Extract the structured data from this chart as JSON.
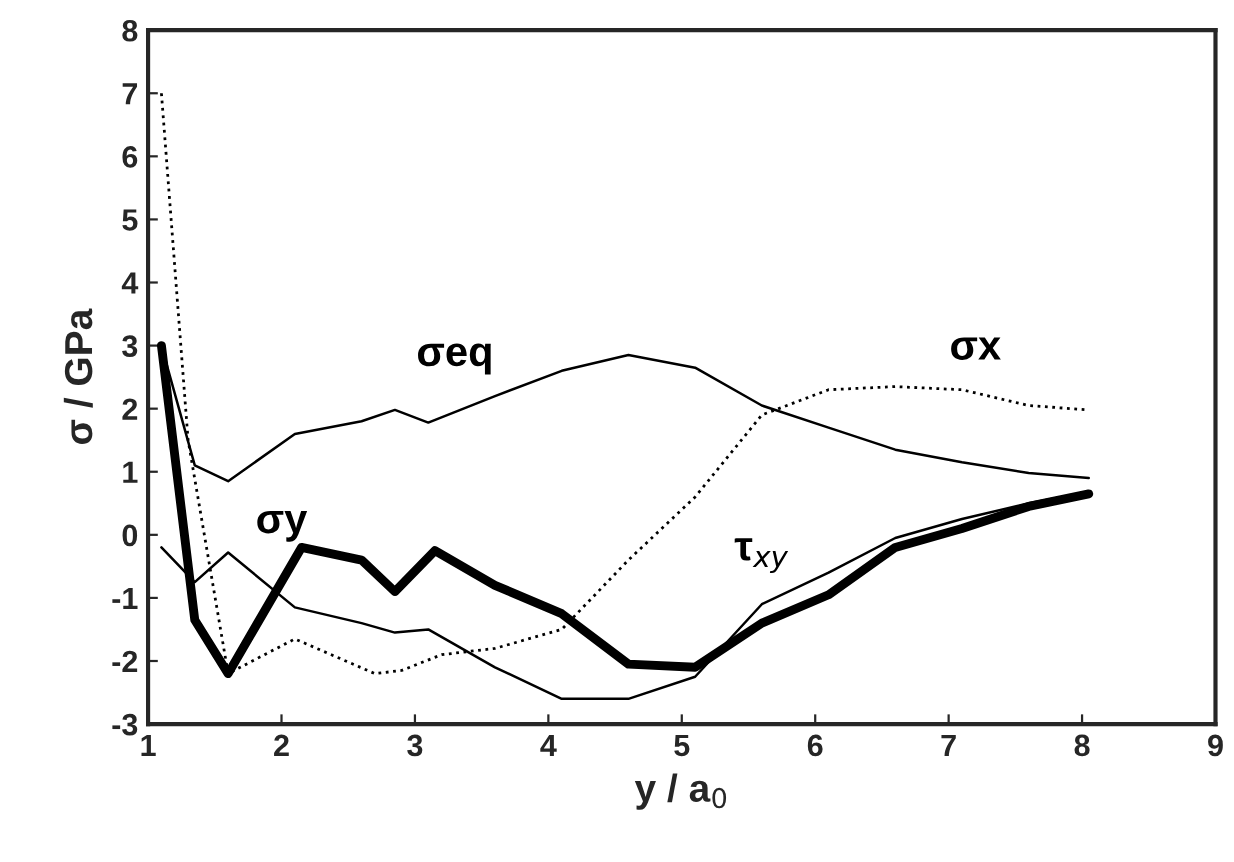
{
  "chart_data": {
    "type": "line",
    "xlabel": "y / a$_{0}$",
    "ylabel": "σ / GPa",
    "xlim": [
      1,
      9
    ],
    "ylim": [
      -3,
      8
    ],
    "xticks": [
      1,
      2,
      3,
      4,
      5,
      6,
      7,
      8,
      9
    ],
    "yticks": [
      -3,
      -2,
      -1,
      0,
      1,
      2,
      3,
      4,
      5,
      6,
      7,
      8
    ],
    "grid": false,
    "legend": false,
    "marker": "none",
    "series": [
      {
        "name": "σeq",
        "color": "#000000",
        "line_style": "solid",
        "x": [
          1.1,
          1.35,
          1.6,
          2.1,
          2.6,
          2.85,
          3.1,
          3.6,
          4.1,
          4.6,
          5.1,
          5.6,
          6.1,
          6.6,
          7.1,
          7.6,
          8.05
        ],
        "values": [
          3.0,
          1.1,
          0.85,
          1.6,
          1.8,
          1.98,
          1.78,
          2.2,
          2.6,
          2.85,
          2.65,
          2.05,
          1.7,
          1.35,
          1.15,
          0.98,
          0.9
        ]
      },
      {
        "name": "σx",
        "color": "#000000",
        "line_style": "dotted",
        "x": [
          1.1,
          1.3,
          1.6,
          2.1,
          2.7,
          2.9,
          3.2,
          3.6,
          4.1,
          4.6,
          5.1,
          5.6,
          6.1,
          6.6,
          7.1,
          7.6,
          8.05
        ],
        "values": [
          7.0,
          1.5,
          -2.2,
          -1.65,
          -2.2,
          -2.15,
          -1.9,
          -1.8,
          -1.5,
          -0.4,
          0.6,
          1.9,
          2.3,
          2.35,
          2.3,
          2.05,
          1.98
        ]
      },
      {
        "name": "σy",
        "color": "#000000",
        "line_style": "solid",
        "x": [
          1.1,
          1.35,
          1.6,
          2.15,
          2.6,
          2.85,
          3.15,
          3.6,
          4.1,
          4.6,
          5.1,
          5.6,
          6.1,
          6.6,
          7.1,
          7.6,
          8.05
        ],
        "values": [
          3.0,
          -1.35,
          -2.2,
          -0.2,
          -0.4,
          -0.9,
          -0.25,
          -0.8,
          -1.25,
          -2.05,
          -2.1,
          -1.4,
          -0.95,
          -0.2,
          0.1,
          0.45,
          0.65
        ]
      },
      {
        "name": "τ$_{xy}$",
        "color": "#000000",
        "line_style": "solid",
        "x": [
          1.1,
          1.35,
          1.6,
          2.1,
          2.6,
          2.85,
          3.1,
          3.6,
          4.1,
          4.6,
          5.1,
          5.6,
          6.1,
          6.6,
          7.1,
          7.6,
          8.05
        ],
        "values": [
          -0.2,
          -0.75,
          -0.28,
          -1.15,
          -1.4,
          -1.55,
          -1.5,
          -2.1,
          -2.6,
          -2.6,
          -2.25,
          -1.1,
          -0.6,
          -0.05,
          0.25,
          0.5,
          0.68
        ]
      }
    ]
  }
}
